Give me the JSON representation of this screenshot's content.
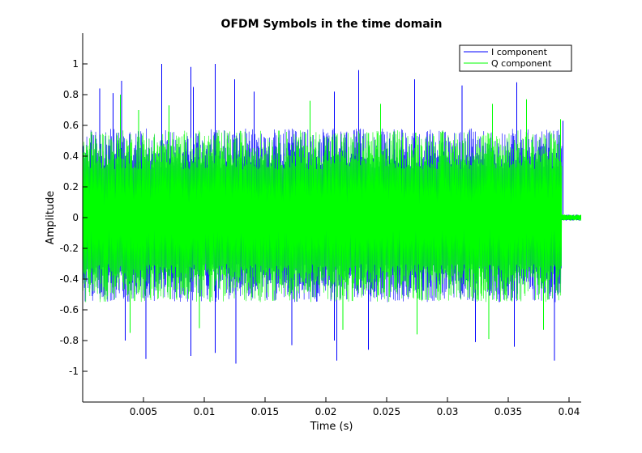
{
  "chart_data": {
    "type": "line",
    "title": "OFDM Symbols in the time domain",
    "xlabel": "Time (s)",
    "ylabel": "Amplitude",
    "xlim": [
      0,
      0.041
    ],
    "ylim": [
      -1.2,
      1.2
    ],
    "x_ticks": [
      0.005,
      0.01,
      0.015,
      0.02,
      0.025,
      0.03,
      0.035,
      0.04
    ],
    "x_tick_labels": [
      "0.005",
      "0.01",
      "0.015",
      "0.02",
      "0.025",
      "0.03",
      "0.035",
      "0.04"
    ],
    "y_ticks": [
      -1,
      -0.8,
      -0.6,
      -0.4,
      -0.2,
      0,
      0.2,
      0.4,
      0.6,
      0.8,
      1
    ],
    "y_tick_labels": [
      "-1",
      "-0.8",
      "-0.6",
      "-0.4",
      "-0.2",
      "0",
      "0.2",
      "0.4",
      "0.6",
      "0.8",
      "1"
    ],
    "grid": false,
    "legend_position": "top-right",
    "signal_end_time": 0.0394,
    "tail_end_time": 0.041,
    "tail_amplitude": 0.02,
    "series": [
      {
        "name": "I component",
        "color": "#0000ff",
        "typical_range": [
          -0.55,
          0.58
        ],
        "peaks": [
          {
            "x": 0.0014,
            "y": 0.84
          },
          {
            "x": 0.0025,
            "y": 0.81
          },
          {
            "x": 0.0032,
            "y": 0.89
          },
          {
            "x": 0.0065,
            "y": 1.0
          },
          {
            "x": 0.0089,
            "y": 0.98
          },
          {
            "x": 0.0091,
            "y": 0.85
          },
          {
            "x": 0.0109,
            "y": 1.0
          },
          {
            "x": 0.0125,
            "y": 0.9
          },
          {
            "x": 0.0141,
            "y": 0.82
          },
          {
            "x": 0.0207,
            "y": 0.82
          },
          {
            "x": 0.0227,
            "y": 0.96
          },
          {
            "x": 0.0273,
            "y": 0.9
          },
          {
            "x": 0.0312,
            "y": 0.86
          },
          {
            "x": 0.0357,
            "y": 0.88
          },
          {
            "x": 0.0395,
            "y": 0.63
          },
          {
            "x": 0.0035,
            "y": -0.8
          },
          {
            "x": 0.0052,
            "y": -0.92
          },
          {
            "x": 0.0089,
            "y": -0.9
          },
          {
            "x": 0.0109,
            "y": -0.88
          },
          {
            "x": 0.0126,
            "y": -0.95
          },
          {
            "x": 0.0172,
            "y": -0.83
          },
          {
            "x": 0.0207,
            "y": -0.8
          },
          {
            "x": 0.0209,
            "y": -0.93
          },
          {
            "x": 0.0235,
            "y": -0.86
          },
          {
            "x": 0.0323,
            "y": -0.81
          },
          {
            "x": 0.0355,
            "y": -0.84
          },
          {
            "x": 0.0388,
            "y": -0.93
          }
        ]
      },
      {
        "name": "Q component",
        "color": "#00ff00",
        "typical_range": [
          -0.55,
          0.57
        ],
        "peaks": [
          {
            "x": 0.0031,
            "y": 0.8
          },
          {
            "x": 0.0046,
            "y": 0.7
          },
          {
            "x": 0.0071,
            "y": 0.73
          },
          {
            "x": 0.0187,
            "y": 0.76
          },
          {
            "x": 0.0245,
            "y": 0.74
          },
          {
            "x": 0.0337,
            "y": 0.74
          },
          {
            "x": 0.0365,
            "y": 0.77
          },
          {
            "x": 0.0393,
            "y": 0.64
          },
          {
            "x": 0.0039,
            "y": -0.75
          },
          {
            "x": 0.0096,
            "y": -0.72
          },
          {
            "x": 0.0214,
            "y": -0.73
          },
          {
            "x": 0.0275,
            "y": -0.76
          },
          {
            "x": 0.0334,
            "y": -0.79
          },
          {
            "x": 0.0379,
            "y": -0.73
          }
        ]
      }
    ]
  }
}
